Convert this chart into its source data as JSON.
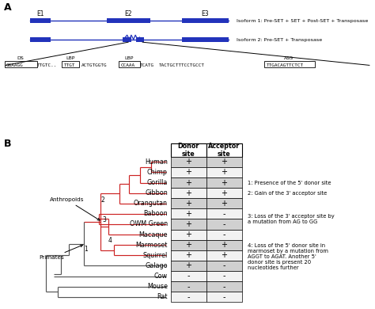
{
  "isoform1_text": "Isoform 1: Pre-SET + SET + Post-SET + Transposase",
  "isoform2_text": "Isoform 2: Pre-SET + Transposase",
  "species": [
    "Human",
    "Chimp",
    "Gorilla",
    "Gibbon",
    "Orangutan",
    "Baboon",
    "OWM Green",
    "Macaque",
    "Marmoset",
    "Squirrel",
    "Galago",
    "Cow",
    "Mouse",
    "Rat"
  ],
  "donor": [
    "+",
    "+",
    "+",
    "+",
    "+",
    "+",
    "+",
    "+",
    "+",
    "+",
    "+",
    "-",
    "-",
    "-"
  ],
  "acceptor": [
    "+",
    "+",
    "+",
    "+",
    "+",
    "-",
    "-",
    "-",
    "+",
    "+",
    "-",
    "-",
    "-",
    "-"
  ],
  "shaded_rows": [
    0,
    2,
    4,
    6,
    8,
    10,
    12
  ],
  "note1": "1: Presence of the 5' donor site",
  "note2": "2: Gain of the 3' acceptor site",
  "note3": "3: Loss of the 3' acceptor site by\na mutation from AG to GG",
  "note4": "4: Loss of the 5' donor site in\nmarmoset by a mutation from\nAGGT to AGAT. Another 5'\ndonor site is present 20\nnucleotides further",
  "blue": "#2233BB",
  "red": "#CC2222",
  "dgray": "#555555",
  "lgray": "#999999"
}
